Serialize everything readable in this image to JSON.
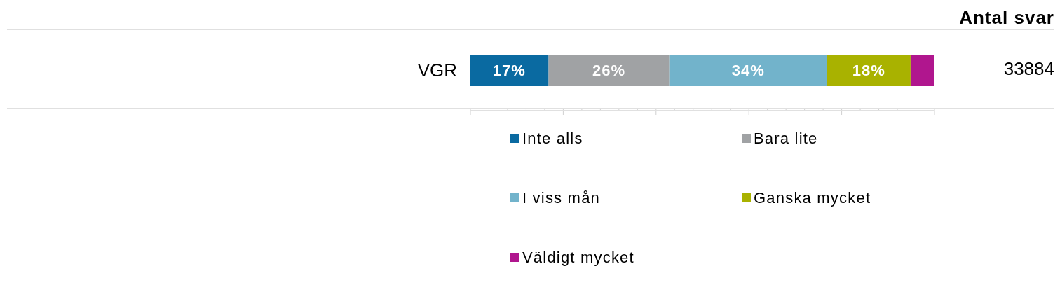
{
  "chart_data": {
    "type": "bar",
    "orientation": "horizontal",
    "stacked": true,
    "categories": [
      "VGR"
    ],
    "series": [
      {
        "name": "Inte alls",
        "color": "#0a6aa1",
        "values": [
          17
        ],
        "value_labels": [
          "17%"
        ]
      },
      {
        "name": "Bara lite",
        "color": "#a0a2a4",
        "values": [
          26
        ],
        "value_labels": [
          "26%"
        ]
      },
      {
        "name": "I viss mån",
        "color": "#72b3cb",
        "values": [
          34
        ],
        "value_labels": [
          "34%"
        ]
      },
      {
        "name": "Ganska mycket",
        "color": "#a9b200",
        "values": [
          18
        ],
        "value_labels": [
          "18%"
        ]
      },
      {
        "name": "Väldigt mycket",
        "color": "#b0168e",
        "values": [
          5
        ],
        "value_labels": [
          null
        ]
      }
    ],
    "xlim": [
      0,
      100
    ],
    "tick_labels": "y",
    "legend": "bottom",
    "annotations": [
      "Antal svar",
      "33884"
    ]
  }
}
